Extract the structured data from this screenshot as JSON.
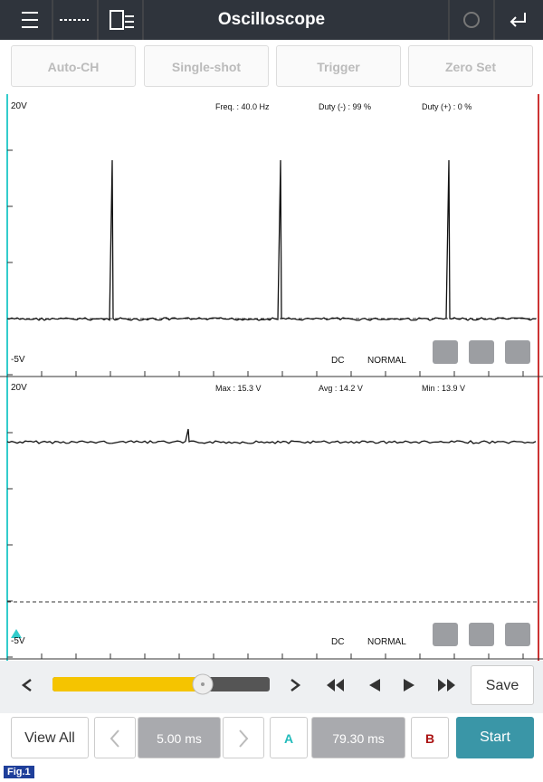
{
  "header": {
    "title": "Oscilloscope"
  },
  "toolbar": [
    "Auto-CH",
    "Single-shot",
    "Trigger",
    "Zero Set"
  ],
  "channels": [
    {
      "top_label": "20V",
      "bottom_label": "-5V",
      "measurements": [
        "Freq. : 40.0 Hz",
        "Duty (-) : 99 %",
        "Duty (+) : 0 %"
      ],
      "coupling": "DC",
      "mode": "NORMAL"
    },
    {
      "top_label": "20V",
      "bottom_label": "-5V",
      "measurements": [
        "Max : 15.3 V",
        "Avg : 14.2 V",
        "Min : 13.9 V"
      ],
      "coupling": "DC",
      "mode": "NORMAL"
    }
  ],
  "controls": {
    "save": "Save",
    "view_all": "View All",
    "time_div": "5.00 ms",
    "cursor_a": "A",
    "cursor_time": "79.30 ms",
    "cursor_b": "B",
    "start": "Start"
  },
  "figure_label": "Fig.1"
}
